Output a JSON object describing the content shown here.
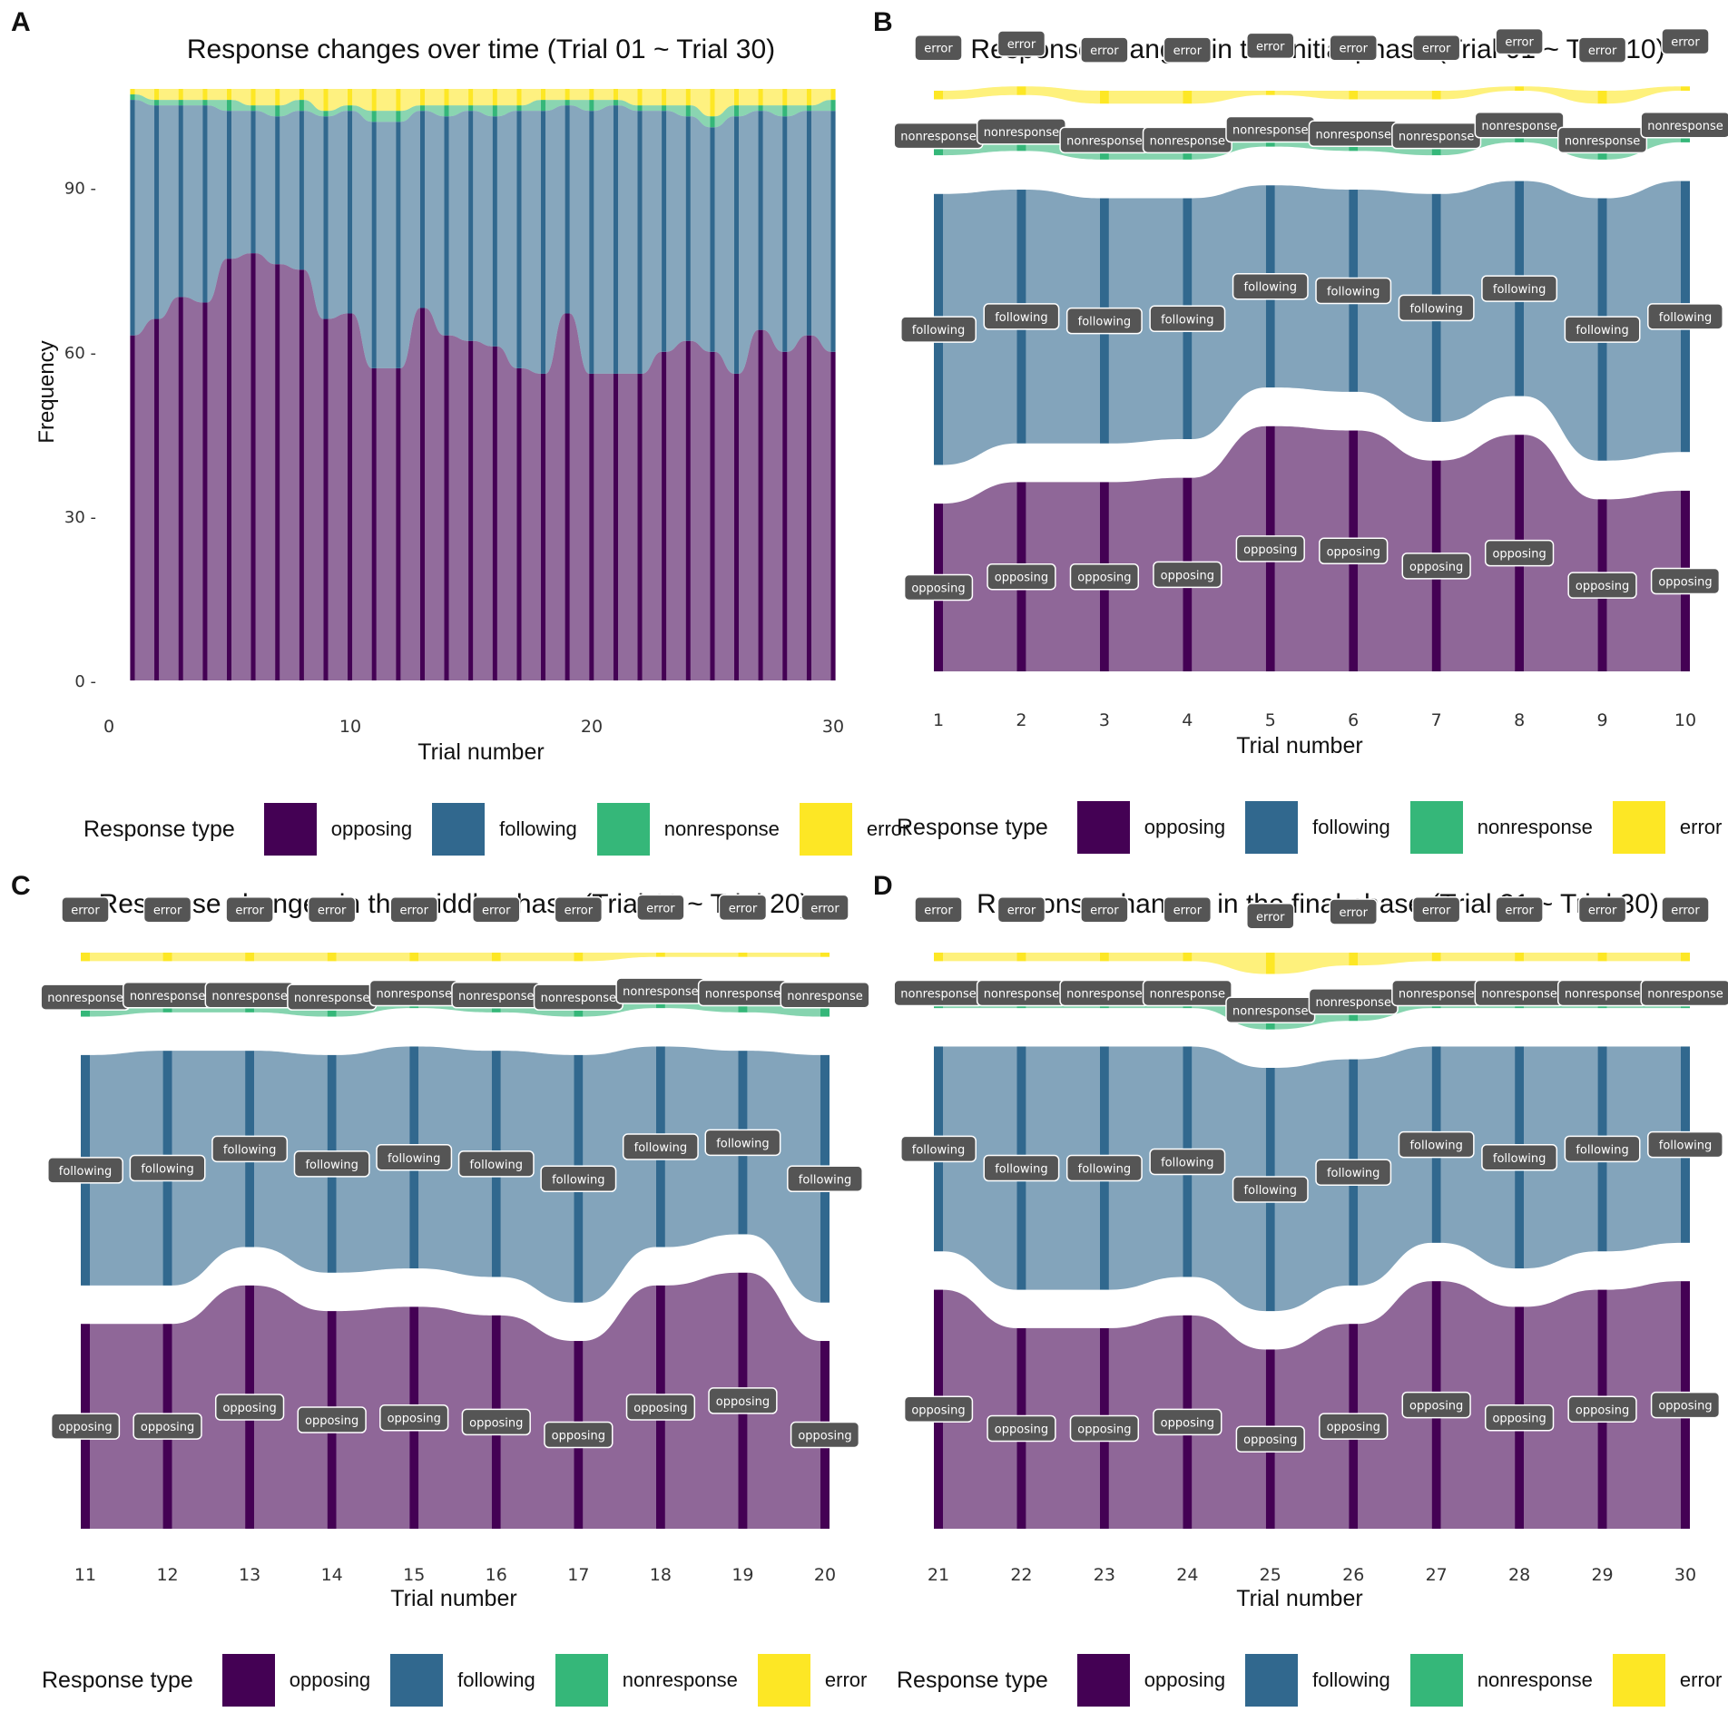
{
  "legend": {
    "title": "Response type",
    "items": [
      {
        "label": "opposing",
        "color": "#440154"
      },
      {
        "label": "following",
        "color": "#31688e"
      },
      {
        "label": "nonresponse",
        "color": "#35b779"
      },
      {
        "label": "error",
        "color": "#fde725"
      }
    ]
  },
  "chart_data": [
    {
      "panel": "A",
      "type": "area",
      "title": "Response changes over time (Trial 01 ~ Trial 30)",
      "xlabel": "Trial number",
      "ylabel": "Frequency",
      "x_ticks": [
        "0",
        "10",
        "20",
        "30"
      ],
      "y_ticks": [
        "0",
        "30",
        "60",
        "90"
      ],
      "xlim": [
        0,
        30
      ],
      "ylim": [
        0,
        108
      ],
      "x": [
        1,
        2,
        3,
        4,
        5,
        6,
        7,
        8,
        9,
        10,
        11,
        12,
        13,
        14,
        15,
        16,
        17,
        18,
        19,
        20,
        21,
        22,
        23,
        24,
        25,
        26,
        27,
        28,
        29,
        30
      ],
      "series": [
        {
          "name": "opposing",
          "values": [
            63,
            66,
            70,
            69,
            77,
            78,
            76,
            75,
            66,
            67,
            57,
            57,
            68,
            63,
            62,
            61,
            57,
            56,
            67,
            56,
            56,
            56,
            60,
            62,
            60,
            56,
            64,
            60,
            63,
            60
          ]
        },
        {
          "name": "following",
          "values": [
            43,
            39,
            35,
            36,
            27,
            26,
            27,
            29,
            37,
            37,
            45,
            45,
            36,
            40,
            42,
            42,
            47,
            48,
            38,
            48,
            49,
            48,
            44,
            41,
            41,
            47,
            40,
            43,
            41,
            44
          ]
        },
        {
          "name": "nonresponse",
          "values": [
            1,
            1,
            1,
            1,
            2,
            1,
            2,
            2,
            1,
            1,
            2,
            2,
            1,
            2,
            1,
            2,
            1,
            2,
            1,
            2,
            1,
            1,
            1,
            2,
            2,
            2,
            1,
            2,
            1,
            2
          ]
        },
        {
          "name": "error",
          "values": [
            1,
            2,
            2,
            2,
            2,
            3,
            3,
            2,
            4,
            3,
            4,
            4,
            3,
            3,
            3,
            3,
            3,
            2,
            2,
            2,
            2,
            3,
            3,
            3,
            5,
            3,
            3,
            3,
            3,
            2
          ]
        }
      ]
    },
    {
      "panel": "B",
      "type": "alluvial",
      "title": "Response changes in the initial phase (Trial 01 ~ Trial 10)",
      "xlabel": "Trial number",
      "x": [
        "1",
        "2",
        "3",
        "4",
        "5",
        "6",
        "7",
        "8",
        "9",
        "10"
      ],
      "series": [
        {
          "name": "opposing",
          "values": [
            39,
            44,
            44,
            45,
            57,
            56,
            49,
            55,
            40,
            42
          ]
        },
        {
          "name": "following",
          "values": [
            63,
            59,
            57,
            56,
            47,
            47,
            53,
            50,
            61,
            63
          ]
        },
        {
          "name": "nonresponse",
          "values": [
            4,
            4,
            4,
            4,
            3,
            3,
            4,
            3,
            4,
            3
          ]
        },
        {
          "name": "error",
          "values": [
            2,
            2,
            3,
            3,
            1,
            2,
            2,
            1,
            3,
            1
          ]
        }
      ],
      "labels": {
        "opposing": "opposing",
        "following": "following",
        "nonresponse": "nonresponse",
        "error": "error"
      }
    },
    {
      "panel": "C",
      "type": "alluvial",
      "title": "Response changes in the middle phase (Trial 11 ~ Trial 20)",
      "xlabel": "Trial number",
      "x": [
        "11",
        "12",
        "13",
        "14",
        "15",
        "16",
        "17",
        "18",
        "19",
        "20"
      ],
      "series": [
        {
          "name": "opposing",
          "values": [
            48,
            48,
            57,
            51,
            52,
            50,
            44,
            57,
            60,
            44
          ]
        },
        {
          "name": "following",
          "values": [
            54,
            55,
            46,
            51,
            52,
            53,
            58,
            47,
            43,
            58
          ]
        },
        {
          "name": "nonresponse",
          "values": [
            4,
            3,
            3,
            4,
            2,
            3,
            4,
            3,
            4,
            5
          ]
        },
        {
          "name": "error",
          "values": [
            2,
            2,
            2,
            2,
            2,
            2,
            2,
            1,
            1,
            1
          ]
        }
      ],
      "labels": {
        "opposing": "opposing",
        "following": "following",
        "nonresponse": "nonresponse",
        "error": "error"
      }
    },
    {
      "panel": "D",
      "type": "alluvial",
      "title": "Response changes in the final phase (Trial 21 ~ Trial 30)",
      "xlabel": "Trial number",
      "x": [
        "21",
        "22",
        "23",
        "24",
        "25",
        "26",
        "27",
        "28",
        "29",
        "30"
      ],
      "series": [
        {
          "name": "opposing",
          "values": [
            56,
            47,
            47,
            50,
            42,
            48,
            58,
            52,
            56,
            58
          ]
        },
        {
          "name": "following",
          "values": [
            48,
            57,
            57,
            54,
            57,
            53,
            46,
            52,
            48,
            46
          ]
        },
        {
          "name": "nonresponse",
          "values": [
            2,
            2,
            2,
            2,
            4,
            4,
            2,
            2,
            2,
            2
          ]
        },
        {
          "name": "error",
          "values": [
            2,
            2,
            2,
            2,
            5,
            3,
            2,
            2,
            2,
            2
          ]
        }
      ],
      "labels": {
        "opposing": "opposing",
        "following": "following",
        "nonresponse": "nonresponse",
        "error": "error"
      }
    }
  ]
}
